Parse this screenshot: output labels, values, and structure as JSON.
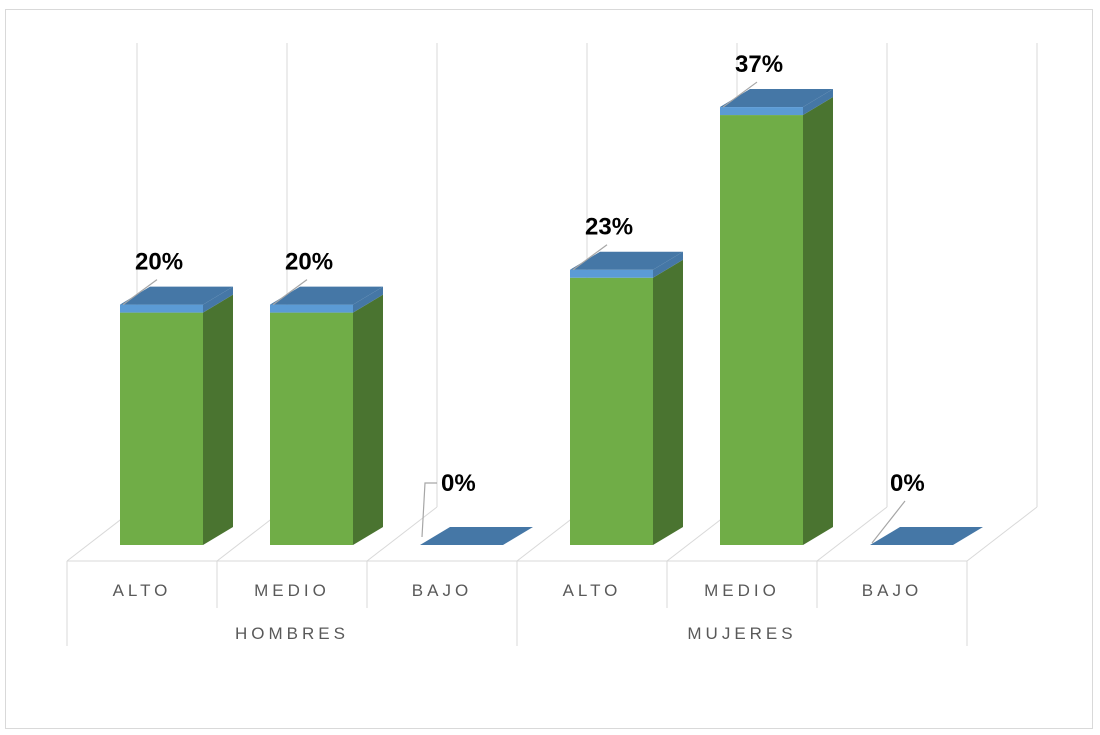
{
  "chart_data": {
    "type": "bar",
    "style": "3d-column",
    "groups": [
      {
        "name": "HOMBRES",
        "categories": [
          "ALTO",
          "MEDIO",
          "BAJO"
        ]
      },
      {
        "name": "MUJERES",
        "categories": [
          "ALTO",
          "MEDIO",
          "BAJO"
        ]
      }
    ],
    "values": [
      20,
      20,
      0,
      23,
      37,
      0
    ],
    "data_labels": [
      "20%",
      "20%",
      "0%",
      "23%",
      "37%",
      "0%"
    ],
    "ylim": [
      0,
      40
    ],
    "grid": true,
    "colors": {
      "bar_front": "#70ad47",
      "bar_side": "#4a7430",
      "bar_cap_top": "#4577a6",
      "bar_cap_front": "#5b9bd5",
      "gridline": "#d9d9d9",
      "label_text": "#595959"
    }
  }
}
